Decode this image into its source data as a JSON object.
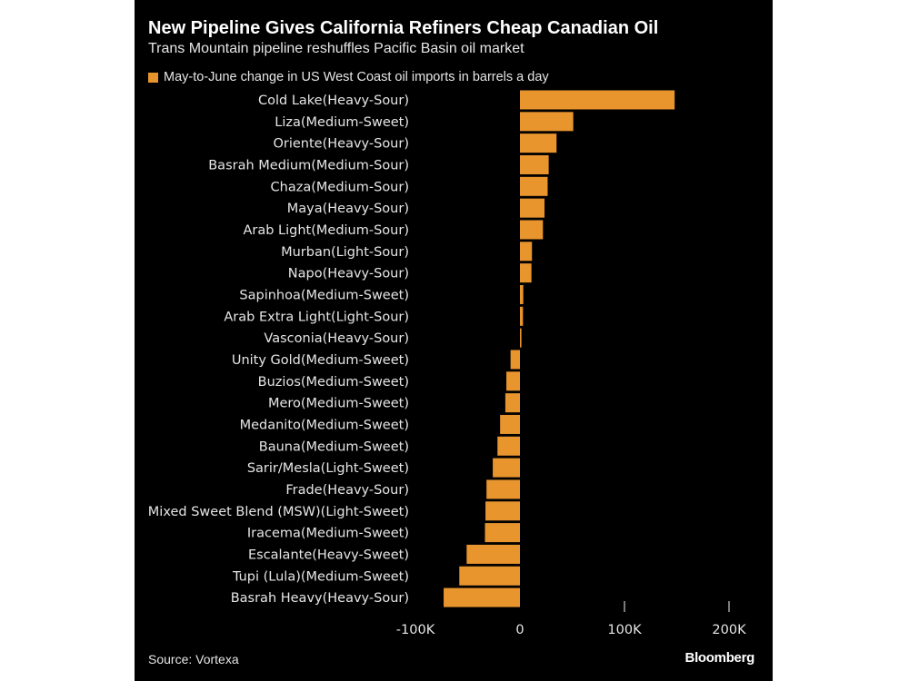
{
  "title": "New Pipeline Gives California Refiners Cheap Canadian Oil",
  "subtitle": "Trans Mountain pipeline reshuffles Pacific Basin oil market",
  "source": "Source: Vortexa",
  "logo": "Bloomberg",
  "chart_data": {
    "type": "bar",
    "orientation": "horizontal",
    "legend": [
      "May-to-June change in US West Coast oil imports in barrels a day"
    ],
    "legend_placement": "top-left",
    "color": "#e8952e",
    "grid": false,
    "xlim": [
      -100000,
      200000
    ],
    "xticks": [
      -100000,
      0,
      100000,
      200000
    ],
    "xtick_labels": [
      "-100K",
      "0",
      "100K",
      "200K"
    ],
    "categories": [
      "Cold Lake(Heavy-Sour)",
      "Liza(Medium-Sweet)",
      "Oriente(Heavy-Sour)",
      "Basrah Medium(Medium-Sour)",
      "Chaza(Medium-Sour)",
      "Maya(Heavy-Sour)",
      "Arab Light(Medium-Sour)",
      "Murban(Light-Sour)",
      "Napo(Heavy-Sour)",
      "Sapinhoa(Medium-Sweet)",
      "Arab Extra Light(Light-Sour)",
      "Vasconia(Heavy-Sour)",
      "Unity Gold(Medium-Sweet)",
      "Buzios(Medium-Sweet)",
      "Mero(Medium-Sweet)",
      "Medanito(Medium-Sweet)",
      "Bauna(Medium-Sweet)",
      "Sarir/Mesla(Light-Sweet)",
      "Frade(Heavy-Sour)",
      "Mixed Sweet Blend (MSW)(Light-Sweet)",
      "Iracema(Medium-Sweet)",
      "Escalante(Heavy-Sweet)",
      "Tupi (Lula)(Medium-Sweet)",
      "Basrah Heavy(Heavy-Sour)"
    ],
    "values": [
      148000,
      51000,
      35000,
      27500,
      26500,
      23500,
      22000,
      11500,
      11000,
      3200,
      2900,
      1400,
      -9000,
      -13000,
      -14000,
      -19000,
      -21500,
      -26000,
      -32000,
      -33000,
      -33500,
      -51000,
      -58000,
      -73000
    ]
  }
}
